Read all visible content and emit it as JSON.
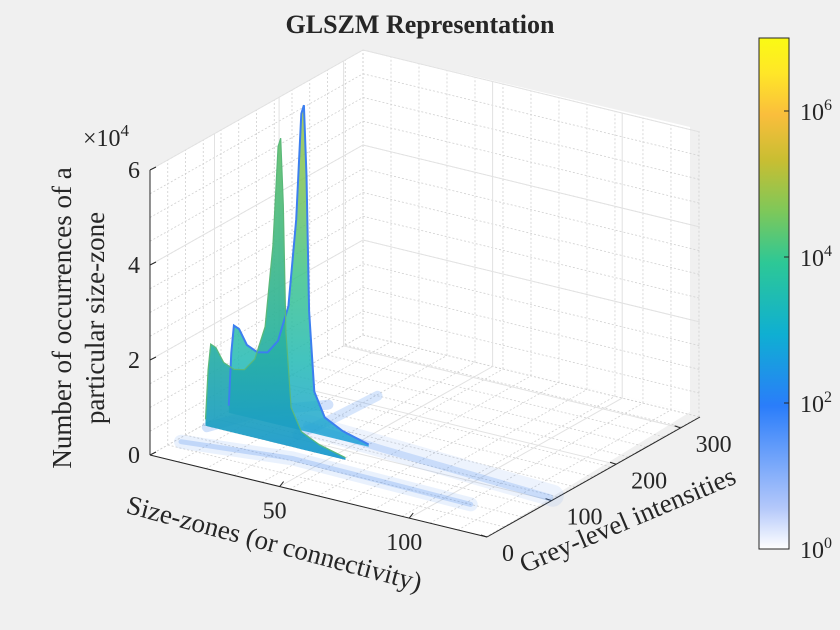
{
  "chart_data": {
    "type": "surface",
    "title": "GLSZM Representation",
    "xlabel": "Size-zones (or connectivity)",
    "ylabel": "Grey-level intensities",
    "zlabel_lines": [
      "Number of occurrences of a",
      "particular size-zone"
    ],
    "x_ticks": [
      "50",
      "100"
    ],
    "y_ticks": [
      "0",
      "100",
      "200",
      "300"
    ],
    "z_ticks": [
      "0",
      "2",
      "4",
      "6"
    ],
    "z_multiplier": {
      "base": "×10",
      "exponent": "4"
    },
    "x_range": [
      0,
      130
    ],
    "y_range": [
      0,
      330
    ],
    "z_range": [
      0,
      6
    ],
    "z_unit_scale": 10000,
    "grid": true,
    "colorbar": {
      "scale": "log",
      "range": [
        1,
        10000000
      ],
      "ticks": [
        {
          "base": "10",
          "exponent": "0",
          "value": 1
        },
        {
          "base": "10",
          "exponent": "2",
          "value": 100
        },
        {
          "base": "10",
          "exponent": "4",
          "value": 10000
        },
        {
          "base": "10",
          "exponent": "6",
          "value": 1000000
        }
      ],
      "colormap": [
        "#ffffff",
        "#b4c8fa",
        "#2a7dfa",
        "#0fafd2",
        "#2dc896",
        "#7dc85a",
        "#c8be32",
        "#fabe3c",
        "#ffe628",
        "#fafa14"
      ]
    },
    "ridge_profile": {
      "y_at_peak": 100,
      "x": [
        1,
        2,
        3,
        5,
        8,
        12,
        16,
        20,
        24,
        27,
        29,
        30,
        31,
        32,
        34,
        38,
        45,
        55
      ],
      "z": [
        0.15,
        1.3,
        1.9,
        1.85,
        1.55,
        1.45,
        1.5,
        1.8,
        2.6,
        4.5,
        6.8,
        7.0,
        5.5,
        2.6,
        0.9,
        0.4,
        0.2,
        0.05
      ]
    }
  }
}
